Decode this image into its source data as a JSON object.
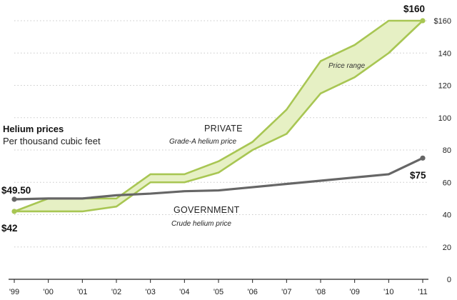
{
  "chart_data": {
    "type": "line",
    "title": "Helium prices",
    "subtitle": "Per thousand cubic feet",
    "x": [
      "'99",
      "'00",
      "'01",
      "'02",
      "'03",
      "'04",
      "'05",
      "'06",
      "'07",
      "'08",
      "'09",
      "'10",
      "'11"
    ],
    "ylim": [
      0,
      160
    ],
    "yticks": [
      0,
      20,
      40,
      60,
      80,
      100,
      120,
      140,
      160
    ],
    "ytick_labels": [
      "0",
      "20",
      "40",
      "60",
      "80",
      "100",
      "120",
      "140",
      "$160"
    ],
    "grid": true,
    "series": [
      {
        "name": "PRIVATE",
        "sublabel": "Grade-A helium price",
        "range_label": "Price range",
        "color": "#a8c653",
        "fill": "#e6f0c4",
        "low": [
          42,
          42,
          42,
          45,
          60,
          60,
          66,
          80,
          90,
          115,
          125,
          140,
          160
        ],
        "high": [
          42,
          50,
          50,
          50,
          65,
          65,
          73,
          85,
          105,
          135,
          145,
          160,
          160
        ]
      },
      {
        "name": "GOVERNMENT",
        "sublabel": "Crude helium price",
        "color": "#666666",
        "values": [
          49.5,
          50,
          50,
          52,
          53,
          54.5,
          55,
          57,
          59,
          61,
          63,
          65,
          75
        ]
      }
    ],
    "annotations": {
      "gov_start": "$49.50",
      "private_start": "$42",
      "gov_end": "$75",
      "private_end": "$160"
    }
  }
}
